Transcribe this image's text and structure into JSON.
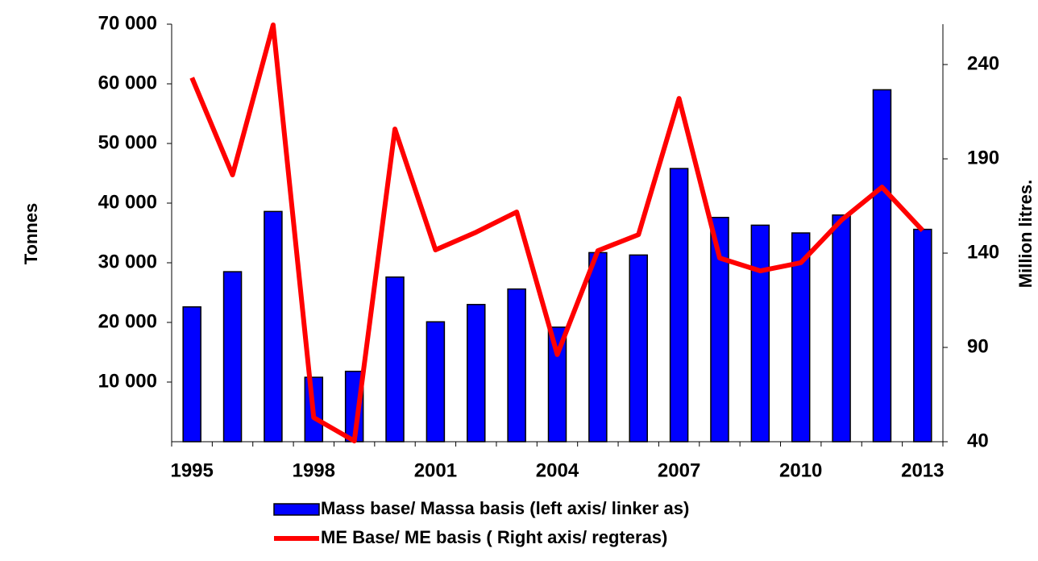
{
  "chart_data": {
    "type": "bar_line",
    "categories": [
      "1995",
      null,
      null,
      "1998",
      null,
      null,
      "2001",
      null,
      null,
      "2004",
      null,
      null,
      "2007",
      null,
      null,
      "2010",
      null,
      null,
      "2013"
    ],
    "series": [
      {
        "name": "Mass base/ Massa basis (left axis/ linker as)",
        "type": "bar",
        "axis": "y",
        "color": "#0000ff",
        "values": [
          22600,
          28500,
          38600,
          10800,
          11800,
          27600,
          20100,
          23000,
          25600,
          19200,
          31700,
          31300,
          45800,
          37600,
          36300,
          35000,
          38000,
          59000,
          35600
        ]
      },
      {
        "name": "ME Base/ ME basis ( Right axis/ regteras)",
        "type": "line",
        "axis": "y2",
        "color": "#ff0000",
        "values": [
          233,
          181.5,
          261,
          52.8,
          40.4,
          205.8,
          141.7,
          151.1,
          161.8,
          86.2,
          141.3,
          149.8,
          222,
          137.4,
          130.6,
          134.9,
          157.5,
          175,
          152
        ]
      }
    ],
    "ylabel": "Tonnes",
    "y2label": "Million litres.",
    "ylim": [
      0,
      70000
    ],
    "yticks": [
      {
        "value": 10000,
        "label": "10 000"
      },
      {
        "value": 20000,
        "label": "20 000"
      },
      {
        "value": 30000,
        "label": "30 000"
      },
      {
        "value": 40000,
        "label": "40 000"
      },
      {
        "value": 50000,
        "label": "50 000"
      },
      {
        "value": 60000,
        "label": "60 000"
      },
      {
        "value": 70000,
        "label": "70 000"
      }
    ],
    "y2lim": [
      40,
      261.4
    ],
    "y2ticks": [
      40,
      90,
      140,
      190,
      240
    ],
    "legend": "bottom"
  }
}
